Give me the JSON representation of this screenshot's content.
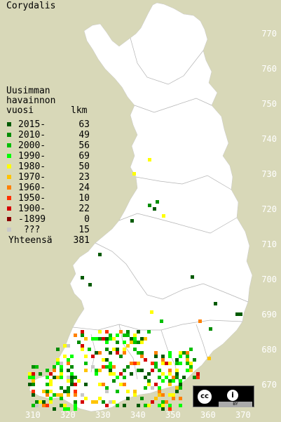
{
  "title": "Corydalis",
  "legend": {
    "heading": [
      "Uusimman",
      "havainnon",
      "vuosi"
    ],
    "count_header": "lkm",
    "items": [
      {
        "label": "2015-",
        "count": "63",
        "color": "#005a00"
      },
      {
        "label": "2010-",
        "count": "49",
        "color": "#008c00"
      },
      {
        "label": "2000-",
        "count": "56",
        "color": "#00bf00"
      },
      {
        "label": "1990-",
        "count": "69",
        "color": "#00ff00"
      },
      {
        "label": "1980-",
        "count": "50",
        "color": "#ffff00"
      },
      {
        "label": "1970-",
        "count": "23",
        "color": "#ffc400"
      },
      {
        "label": "1960-",
        "count": "24",
        "color": "#ff8000"
      },
      {
        "label": "1950-",
        "count": "10",
        "color": "#ff3000"
      },
      {
        "label": "1900-",
        "count": "22",
        "color": "#d40000"
      },
      {
        "label": "-1899",
        "count": "0",
        "color": "#8a0000"
      },
      {
        "label": " ???",
        "count": "15",
        "color": "#c8c8c8"
      }
    ],
    "total_label": "Yhteensä",
    "total_count": "381"
  },
  "y_axis_labels": [
    "770",
    "760",
    "750",
    "740",
    "730",
    "720",
    "710",
    "700",
    "690",
    "680",
    "670"
  ],
  "x_axis_labels": [
    "310",
    "320",
    "330",
    "340",
    "350",
    "360",
    "370"
  ],
  "license": {
    "cc": "cc",
    "by": "i",
    "text": "BY"
  },
  "colors": {
    "background": "#d8d8b8",
    "land": "#ffffff",
    "border": "#b4b4b4"
  }
}
